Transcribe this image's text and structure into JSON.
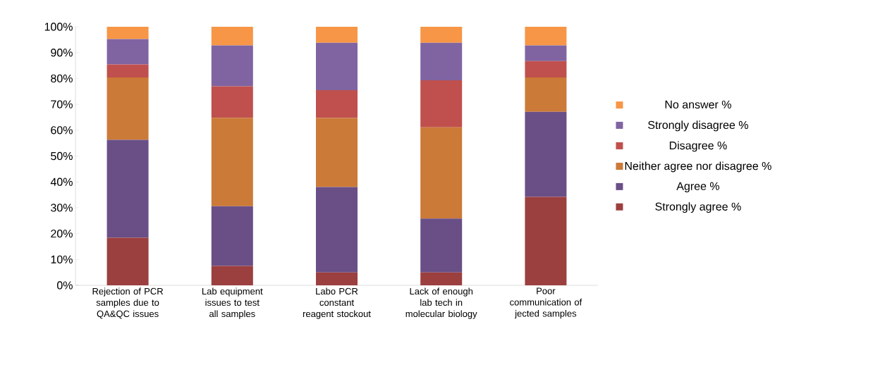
{
  "chart_data": {
    "type": "bar",
    "stacked": true,
    "categories": [
      "Rejection of PCR samples due to QA&QC issues",
      "Lab equipment issues to test all samples",
      "Labo PCR constant reagent stockout",
      "Lack of enough lab tech in molecular biology",
      "Poor communication of jected samples"
    ],
    "series": [
      {
        "name": "Strongly agree %",
        "color": "#9c3f3f",
        "values": [
          18.4,
          7.5,
          5.0,
          5.0,
          34.2
        ]
      },
      {
        "name": "Agree %",
        "color": "#6a4f87",
        "values": [
          37.9,
          23.1,
          33.0,
          20.8,
          32.9
        ]
      },
      {
        "name": "Neither agree nor disagree %",
        "color": "#cb7a38",
        "values": [
          24.1,
          34.2,
          26.7,
          35.3,
          13.3
        ]
      },
      {
        "name": "Disagree %",
        "color": "#c0504d",
        "values": [
          5.0,
          12.2,
          10.8,
          18.2,
          6.3
        ]
      },
      {
        "name": "Strongly disagree %",
        "color": "#8064a2",
        "values": [
          9.8,
          15.8,
          18.3,
          14.5,
          6.1
        ]
      },
      {
        "name": "No answer %",
        "color": "#f79646",
        "values": [
          4.8,
          7.2,
          6.2,
          6.2,
          7.2
        ]
      }
    ],
    "ylim": [
      0,
      100
    ],
    "yticks": [
      {
        "value": 0,
        "label": "0%"
      },
      {
        "value": 10,
        "label": "10%"
      },
      {
        "value": 20,
        "label": "20%"
      },
      {
        "value": 30,
        "label": "30%"
      },
      {
        "value": 40,
        "label": "40%"
      },
      {
        "value": 50,
        "label": "50%"
      },
      {
        "value": 60,
        "label": "60%"
      },
      {
        "value": 70,
        "label": "70%"
      },
      {
        "value": 80,
        "label": "80%"
      },
      {
        "value": 90,
        "label": "90%"
      },
      {
        "value": 100,
        "label": "100%"
      }
    ],
    "grid": false,
    "legend": "right"
  }
}
